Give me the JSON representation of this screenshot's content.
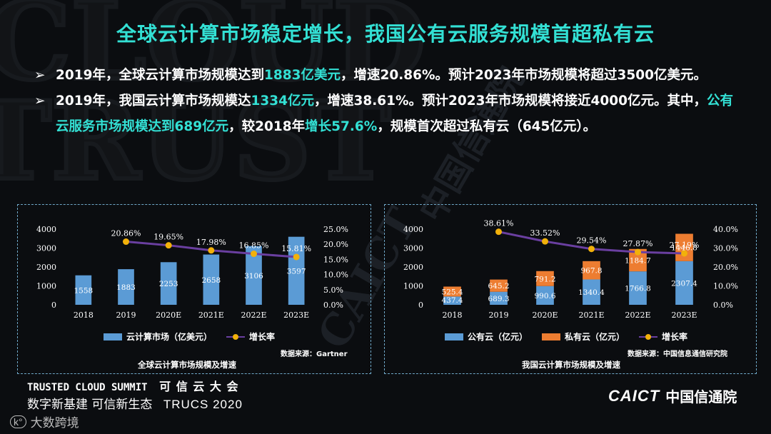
{
  "title": "全球云计算市场稳定增长，我国公有云服务规模首超私有云",
  "bullets": [
    {
      "parts": [
        {
          "t": "2019年，全球云计算市场规模达到",
          "hl": false
        },
        {
          "t": "1883亿美元",
          "hl": true
        },
        {
          "t": "，增速20.86%。预计2023年市场规模将超过3500亿美元。",
          "hl": false
        }
      ]
    },
    {
      "parts": [
        {
          "t": "2019年，我国云计算市场规模达",
          "hl": false
        },
        {
          "t": "1334亿元",
          "hl": true
        },
        {
          "t": "，增速38.61%。预计2023年市场规模将接近4000亿元。其中，",
          "hl": false
        },
        {
          "t": "公有云服务市场规模达到689亿元",
          "hl": true
        },
        {
          "t": "，较2018年",
          "hl": false
        },
        {
          "t": "增长57.6%",
          "hl": true
        },
        {
          "t": "，规模首次超过私有云（645亿元）。",
          "hl": false
        }
      ]
    }
  ],
  "chart_data": [
    {
      "type": "bar",
      "title": "全球云计算市场规模及增速",
      "source": "数据来源：Gartner",
      "categories": [
        "2018",
        "2019",
        "2020E",
        "2021E",
        "2022E",
        "2023E"
      ],
      "ylim": [
        0,
        4000
      ],
      "yticks": [
        "0",
        "1000",
        "2000",
        "3000",
        "4000"
      ],
      "y2lim": [
        0,
        25
      ],
      "y2ticks": [
        "0.0%",
        "5.0%",
        "10.0%",
        "15.0%",
        "20.0%",
        "25.0%"
      ],
      "series": [
        {
          "name": "云计算市场（亿美元）",
          "kind": "bar",
          "color": "#5b9bd5",
          "values": [
            1558,
            1883,
            2253,
            2658,
            3106,
            3597
          ],
          "labels": [
            "1558",
            "1883",
            "2253",
            "2658",
            "3106",
            "3597"
          ]
        }
      ],
      "line": {
        "name": "增长率",
        "color": "#6a3fa0",
        "marker": "#f2b10a",
        "start": 1,
        "values": [
          20.86,
          19.65,
          17.98,
          16.85,
          15.81
        ],
        "labels": [
          "20.86%",
          "19.65%",
          "17.98%",
          "16.85%",
          "15.81%"
        ]
      },
      "legend": "bottom"
    },
    {
      "type": "bar",
      "title": "我国云计算市场规模及增速",
      "source": "数据来源：中国信息通信研究院",
      "categories": [
        "2018",
        "2019",
        "2020E",
        "2021E",
        "2022E",
        "2023E"
      ],
      "ylim": [
        0,
        4000
      ],
      "yticks": [
        "0",
        "1000",
        "2000",
        "3000",
        "4000"
      ],
      "y2lim": [
        0,
        40
      ],
      "y2ticks": [
        "0.0%",
        "10.0%",
        "20.0%",
        "30.0%",
        "40.0%"
      ],
      "stacked": true,
      "series": [
        {
          "name": "公有云（亿元）",
          "kind": "bar",
          "color": "#5b9bd5",
          "values": [
            437.4,
            689.3,
            990.6,
            1340.4,
            1766.8,
            2307.4
          ],
          "labels": [
            "437.4",
            "689.3",
            "990.6",
            "1340.4",
            "1766.8",
            "2307.4"
          ]
        },
        {
          "name": "私有云（亿元）",
          "kind": "bar",
          "color": "#ed7d31",
          "values": [
            525.4,
            645.2,
            791.2,
            967.8,
            1184.7,
            1446.8
          ],
          "labels": [
            "525.4",
            "645.2",
            "791.2",
            "967.8",
            "1184.7",
            "1446.8"
          ]
        }
      ],
      "line": {
        "name": "增长率",
        "color": "#6a3fa0",
        "marker": "#f2b10a",
        "start": 1,
        "values": [
          38.61,
          33.52,
          29.54,
          27.87,
          27.19
        ],
        "labels": [
          "38.61%",
          "33.52%",
          "29.54%",
          "27.87%",
          "27.19%"
        ]
      },
      "legend": "bottom"
    }
  ],
  "footer": {
    "summit_en": "TRUSTED CLOUD SUMMIT",
    "summit_cn": "可 信 云 大 会",
    "slogan": "数字新基建 可信新生态",
    "event": "TRUCS 2020",
    "watermark_brand": "大数跨境",
    "org_logo": "CAICT",
    "org_name": "中国信通院"
  },
  "background_text": [
    "CAICT",
    "中国信通院"
  ]
}
